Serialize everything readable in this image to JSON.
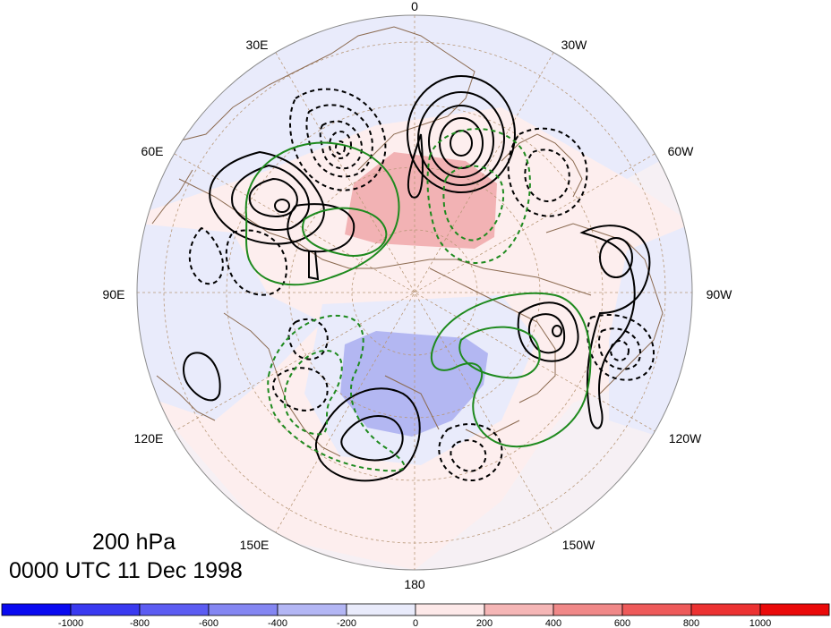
{
  "map": {
    "projection": "north polar stereographic",
    "lon_labels": [
      "0",
      "30W",
      "60W",
      "90W",
      "120W",
      "150W",
      "180",
      "150E",
      "120E",
      "90E",
      "60E",
      "30E"
    ],
    "shading_colors": {
      "neg_light": "#e9ebfb",
      "pos_light": "#fdeeee",
      "neg_medium": "#b3b7f2",
      "pos_medium": "#f2b2b4"
    },
    "contour_colors": {
      "black": "#000000",
      "green": "#1e8a1e",
      "coast": "#8b6a50",
      "graticule": "#b89878"
    }
  },
  "captions": {
    "level": "200 hPa",
    "timestamp": "0000 UTC 11 Dec 1998"
  },
  "colorbar": {
    "labels": [
      "-1000",
      "-800",
      "-600",
      "-400",
      "-200",
      "0",
      "200",
      "400",
      "600",
      "800",
      "1000"
    ],
    "colors": [
      "#0a0af0",
      "#3a3af0",
      "#5c5cf2",
      "#8486f2",
      "#b3b6f4",
      "#e9ebfb",
      "#fde9e9",
      "#f5b6b6",
      "#f08888",
      "#ee5a5a",
      "#ec3232",
      "#ea0a0a"
    ]
  }
}
